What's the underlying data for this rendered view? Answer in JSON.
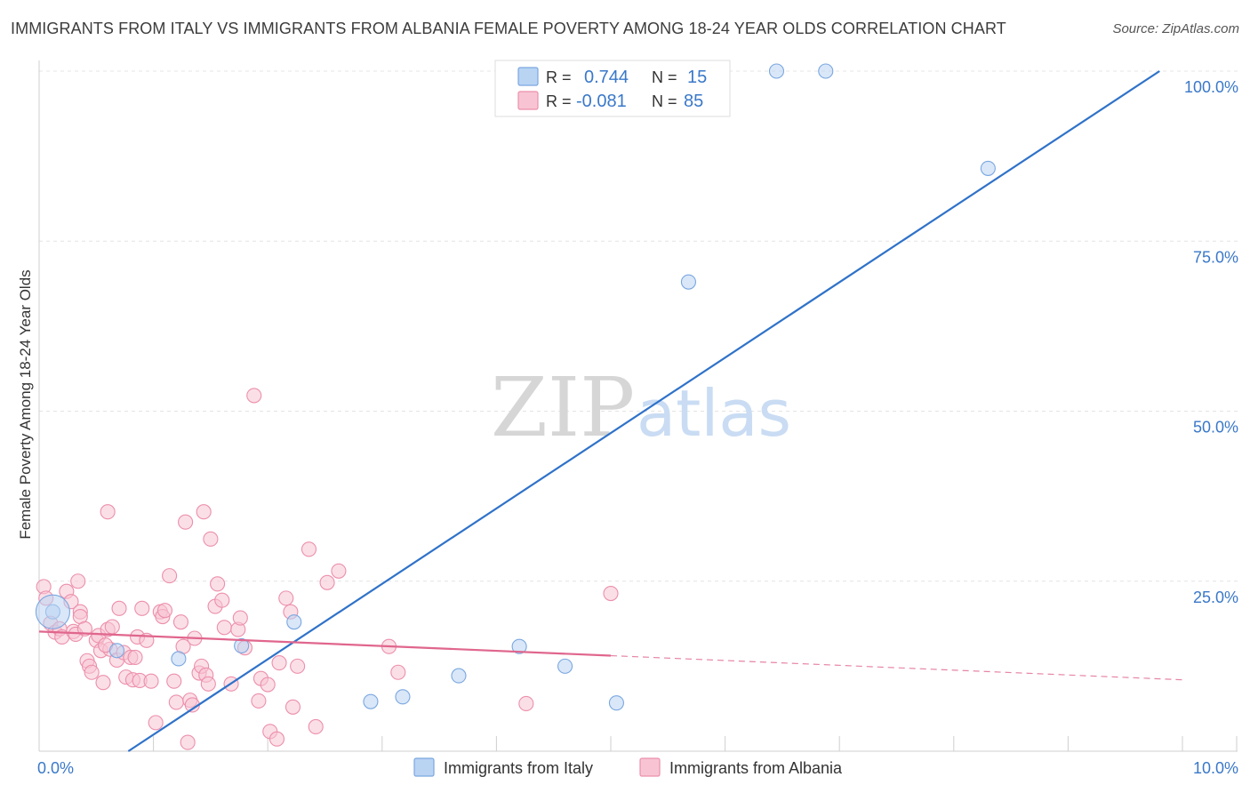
{
  "chart_data": {
    "type": "scatter",
    "title": "IMMIGRANTS FROM ITALY VS IMMIGRANTS FROM ALBANIA FEMALE POVERTY AMONG 18-24 YEAR OLDS CORRELATION CHART",
    "source": "Source: ZipAtlas.com",
    "xlabel": "",
    "ylabel": "Female Poverty Among 18-24 Year Olds",
    "xlim": [
      0,
      10
    ],
    "ylim": [
      0,
      100
    ],
    "x_tick_labels": [
      {
        "value": 0,
        "label": "0.0%"
      },
      {
        "value": 10,
        "label": "10.0%"
      }
    ],
    "y_tick_labels": [
      {
        "value": 25,
        "label": "25.0%"
      },
      {
        "value": 50,
        "label": "50.0%"
      },
      {
        "value": 75,
        "label": "75.0%"
      },
      {
        "value": 100,
        "label": "100.0%"
      }
    ],
    "watermark": {
      "part1": "ZIP",
      "part2": "atlas"
    },
    "legend": {
      "r_label": "R =",
      "n_label": "N =",
      "entries": [
        {
          "r": "0.744",
          "n": "15"
        },
        {
          "r": "-0.081",
          "n": "85"
        }
      ]
    },
    "series": [
      {
        "name": "Immigrants from Italy",
        "color": "#7aa7e0",
        "fill": "#b9d3f3",
        "line_color": "#2f72c9",
        "trend": {
          "x0": 0.78,
          "y0": 0,
          "x1": 9.8,
          "y1": 100,
          "solid_until": 9.8
        },
        "points": [
          [
            0.12,
            20.5
          ],
          [
            0.68,
            14.8
          ],
          [
            1.22,
            13.6
          ],
          [
            1.77,
            15.5
          ],
          [
            2.23,
            19.0
          ],
          [
            2.9,
            7.3
          ],
          [
            3.18,
            8.0
          ],
          [
            3.67,
            11.1
          ],
          [
            4.2,
            15.4
          ],
          [
            4.6,
            12.5
          ],
          [
            5.05,
            7.1
          ],
          [
            5.68,
            69.0
          ],
          [
            6.45,
            100.0
          ],
          [
            6.88,
            100.0
          ],
          [
            8.3,
            85.7
          ]
        ]
      },
      {
        "name": "Immigrants from Albania",
        "color": "#ec8fab",
        "fill": "#f8c4d4",
        "line_color": "#e0668d",
        "trend": {
          "x0": 0,
          "y0": 17.6,
          "x1": 10,
          "y1": 10.5,
          "solid_until": 5.0
        },
        "points": [
          [
            0.04,
            24.2
          ],
          [
            0.06,
            22.5
          ],
          [
            0.1,
            18.8
          ],
          [
            0.14,
            17.5
          ],
          [
            0.18,
            18.0
          ],
          [
            0.2,
            16.8
          ],
          [
            0.24,
            23.5
          ],
          [
            0.28,
            22.0
          ],
          [
            0.3,
            17.6
          ],
          [
            0.32,
            17.2
          ],
          [
            0.34,
            25.0
          ],
          [
            0.36,
            20.5
          ],
          [
            0.36,
            19.8
          ],
          [
            0.4,
            18.0
          ],
          [
            0.42,
            13.3
          ],
          [
            0.44,
            12.5
          ],
          [
            0.46,
            11.6
          ],
          [
            0.5,
            16.3
          ],
          [
            0.52,
            17.0
          ],
          [
            0.54,
            14.8
          ],
          [
            0.56,
            10.1
          ],
          [
            0.6,
            35.2
          ],
          [
            0.6,
            17.9
          ],
          [
            0.62,
            15.0
          ],
          [
            0.64,
            18.3
          ],
          [
            0.68,
            13.4
          ],
          [
            0.7,
            21.0
          ],
          [
            0.74,
            14.5
          ],
          [
            0.76,
            10.9
          ],
          [
            0.8,
            13.8
          ],
          [
            0.82,
            10.5
          ],
          [
            0.84,
            13.8
          ],
          [
            0.86,
            16.8
          ],
          [
            0.88,
            10.4
          ],
          [
            0.9,
            21.0
          ],
          [
            0.94,
            16.3
          ],
          [
            0.98,
            10.3
          ],
          [
            1.02,
            4.2
          ],
          [
            1.06,
            20.5
          ],
          [
            1.08,
            19.8
          ],
          [
            1.1,
            20.7
          ],
          [
            1.14,
            25.8
          ],
          [
            1.18,
            10.3
          ],
          [
            1.2,
            7.2
          ],
          [
            1.24,
            19.0
          ],
          [
            1.26,
            15.4
          ],
          [
            1.28,
            33.7
          ],
          [
            1.3,
            1.3
          ],
          [
            1.32,
            7.5
          ],
          [
            1.34,
            6.8
          ],
          [
            1.36,
            16.6
          ],
          [
            1.4,
            11.5
          ],
          [
            1.42,
            12.5
          ],
          [
            1.44,
            35.2
          ],
          [
            1.46,
            11.2
          ],
          [
            1.48,
            9.9
          ],
          [
            1.5,
            31.2
          ],
          [
            1.54,
            21.3
          ],
          [
            1.56,
            24.6
          ],
          [
            1.6,
            22.2
          ],
          [
            1.62,
            18.2
          ],
          [
            1.68,
            9.9
          ],
          [
            1.74,
            17.9
          ],
          [
            1.76,
            19.6
          ],
          [
            1.8,
            15.2
          ],
          [
            1.88,
            52.3
          ],
          [
            1.92,
            7.4
          ],
          [
            1.94,
            10.7
          ],
          [
            2.0,
            9.8
          ],
          [
            2.02,
            2.9
          ],
          [
            2.08,
            1.8
          ],
          [
            2.1,
            13.0
          ],
          [
            2.16,
            22.5
          ],
          [
            2.2,
            20.5
          ],
          [
            2.22,
            6.5
          ],
          [
            2.26,
            12.5
          ],
          [
            2.36,
            29.7
          ],
          [
            2.42,
            3.6
          ],
          [
            2.52,
            24.8
          ],
          [
            2.62,
            26.5
          ],
          [
            3.06,
            15.4
          ],
          [
            3.14,
            11.6
          ],
          [
            4.26,
            7.0
          ],
          [
            5.0,
            23.2
          ],
          [
            0.58,
            15.6
          ]
        ]
      }
    ]
  }
}
